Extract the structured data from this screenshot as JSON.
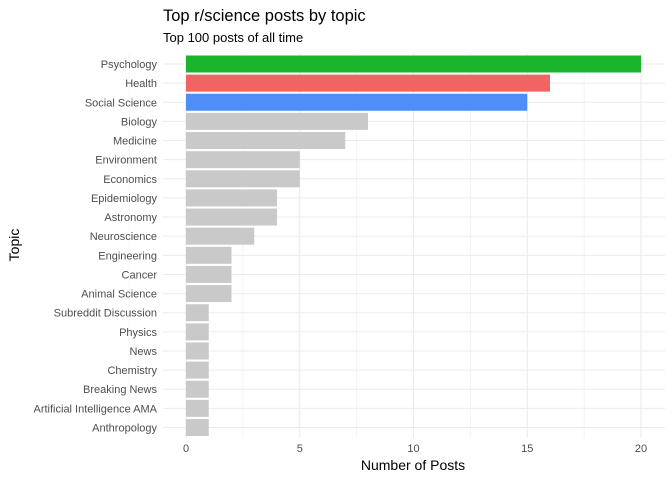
{
  "chart_data": {
    "type": "bar",
    "orientation": "horizontal",
    "title": "Top r/science posts by topic",
    "subtitle": "Top 100 posts of all time",
    "xlabel": "Number of Posts",
    "ylabel": "Topic",
    "xlim": [
      0,
      20
    ],
    "xticks": [
      0,
      5,
      10,
      15,
      20
    ],
    "grid": true,
    "categories": [
      "Psychology",
      "Health",
      "Social Science",
      "Biology",
      "Medicine",
      "Environment",
      "Economics",
      "Epidemiology",
      "Astronomy",
      "Neuroscience",
      "Engineering",
      "Cancer",
      "Animal Science",
      "Subreddit Discussion",
      "Physics",
      "News",
      "Chemistry",
      "Breaking News",
      "Artificial Intelligence AMA",
      "Anthropology"
    ],
    "values": [
      20,
      16,
      15,
      8,
      7,
      5,
      5,
      4,
      4,
      3,
      2,
      2,
      2,
      1,
      1,
      1,
      1,
      1,
      1,
      1
    ],
    "colors": [
      "#1bb42d",
      "#f26363",
      "#4f8df7",
      "#c9c9c9",
      "#c9c9c9",
      "#c9c9c9",
      "#c9c9c9",
      "#c9c9c9",
      "#c9c9c9",
      "#c9c9c9",
      "#c9c9c9",
      "#c9c9c9",
      "#c9c9c9",
      "#c9c9c9",
      "#c9c9c9",
      "#c9c9c9",
      "#c9c9c9",
      "#c9c9c9",
      "#c9c9c9",
      "#c9c9c9"
    ],
    "gridline_color": "#ebebeb"
  }
}
